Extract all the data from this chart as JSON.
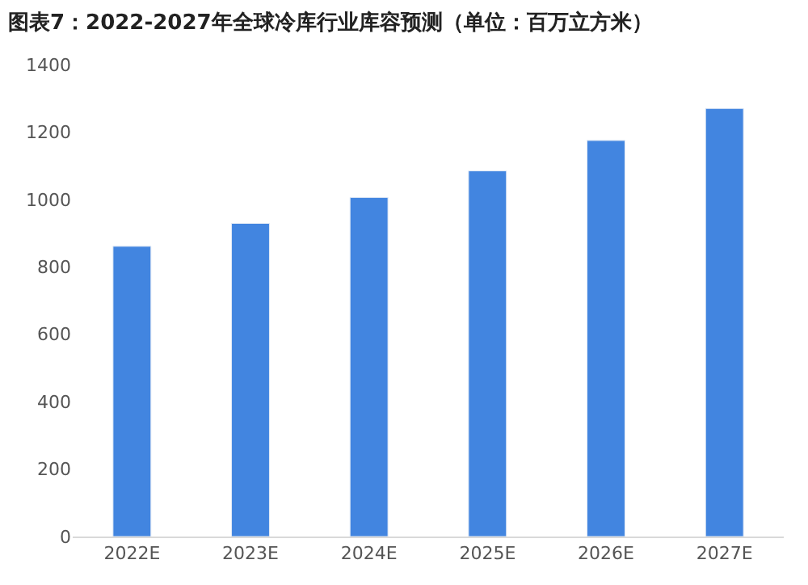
{
  "chart_data": {
    "type": "bar",
    "title": "图表7：2022-2027年全球冷库行业库容预测（单位：百万立方米）",
    "categories": [
      "2022E",
      "2023E",
      "2024E",
      "2025E",
      "2026E",
      "2027E"
    ],
    "values": [
      861,
      929,
      1006,
      1085,
      1175,
      1270
    ],
    "color": "#4285e0",
    "ylim": [
      0,
      1400
    ],
    "yticks": [
      0,
      200,
      400,
      600,
      800,
      1000,
      1200,
      1400
    ]
  }
}
